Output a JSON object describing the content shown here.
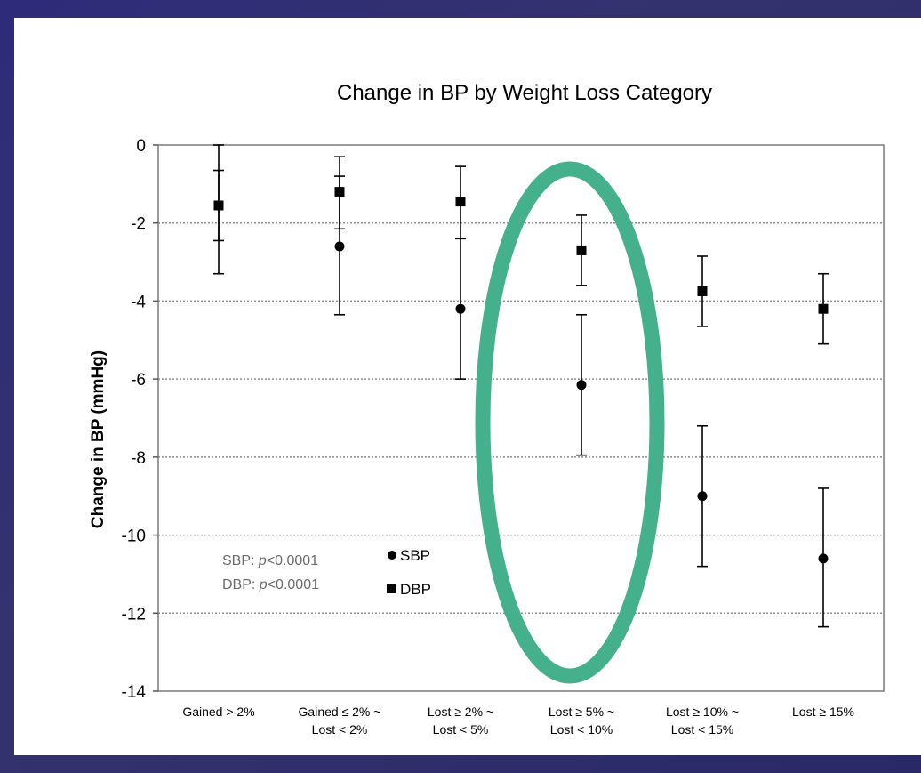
{
  "chart_data": {
    "type": "scatter",
    "title": "Change in BP by Weight Loss Category",
    "xlabel": "",
    "ylabel": "Change in BP (mmHg)",
    "ylim": [
      -14,
      0
    ],
    "yticks": [
      0,
      -2,
      -4,
      -6,
      -8,
      -10,
      -12,
      -14
    ],
    "grid": "horizontal dotted",
    "categories": [
      [
        "Gained > 2%"
      ],
      [
        "Gained ≤ 2% ~",
        "Lost < 2%"
      ],
      [
        "Lost ≥ 2% ~",
        "Lost < 5%"
      ],
      [
        "Lost ≥ 5% ~",
        "Lost < 10%"
      ],
      [
        "Lost ≥ 10% ~",
        "Lost < 15%"
      ],
      [
        "Lost ≥ 15%"
      ]
    ],
    "series": [
      {
        "name": "SBP",
        "marker": "circle",
        "values": [
          -1.55,
          -2.6,
          -4.2,
          -6.15,
          -9.0,
          -10.6
        ],
        "error_low": [
          -2.45,
          -4.35,
          -6.0,
          -7.95,
          -10.8,
          -12.35
        ],
        "error_high": [
          -0.65,
          -0.8,
          -2.4,
          -4.35,
          -7.2,
          -8.8
        ]
      },
      {
        "name": "DBP",
        "marker": "square",
        "values": [
          -1.55,
          -1.2,
          -1.45,
          -2.7,
          -3.75,
          -4.2
        ],
        "error_low": [
          -3.3,
          -2.15,
          -2.4,
          -3.6,
          -4.65,
          -5.1
        ],
        "error_high": [
          0.0,
          -0.3,
          -0.55,
          -1.8,
          -2.85,
          -3.3
        ]
      }
    ],
    "annotations": [
      {
        "label": "SBP: ",
        "italic": "p",
        "value": "<0.0001"
      },
      {
        "label": "DBP: ",
        "italic": "p",
        "value": "<0.0001"
      }
    ],
    "legend_position": "left-bottom",
    "highlight": {
      "shape": "ellipse",
      "category_index": 3,
      "color": "#45b08c"
    }
  }
}
